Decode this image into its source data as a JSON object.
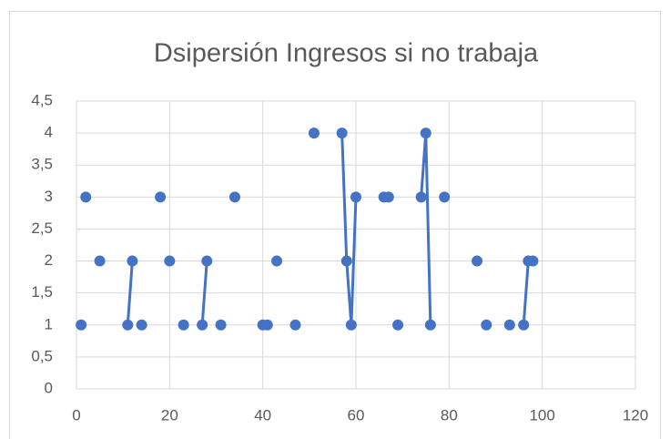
{
  "chart_data": {
    "type": "scatter",
    "title": "Dsipersión Ingresos si no trabaja",
    "color": "#4472c4",
    "grid": true,
    "xlim": [
      0,
      120
    ],
    "xticks": [
      0,
      20,
      40,
      60,
      80,
      100,
      120
    ],
    "ylim": [
      0,
      4.5
    ],
    "yticks": [
      0,
      {
        "value": 0.5,
        "label": "0,5"
      },
      1,
      {
        "value": 1.5,
        "label": "1,5"
      },
      2,
      {
        "value": 2.5,
        "label": "2,5"
      },
      3,
      {
        "value": 3.5,
        "label": "3,5"
      },
      4,
      {
        "value": 4.5,
        "label": "4,5"
      }
    ],
    "x": [
      1,
      null,
      2,
      null,
      5,
      null,
      11,
      12,
      null,
      14,
      null,
      18,
      null,
      20,
      null,
      23,
      null,
      27,
      28,
      null,
      31,
      null,
      34,
      null,
      40,
      null,
      41,
      null,
      43,
      null,
      47,
      null,
      51,
      null,
      57,
      58,
      59,
      60,
      null,
      66,
      null,
      67,
      null,
      69,
      null,
      74,
      75,
      76,
      null,
      79,
      null,
      86,
      null,
      88,
      null,
      93,
      null,
      96,
      97,
      98
    ],
    "values": [
      1,
      null,
      3,
      null,
      2,
      null,
      1,
      2,
      null,
      1,
      null,
      3,
      null,
      2,
      null,
      1,
      null,
      1,
      2,
      null,
      1,
      null,
      3,
      null,
      1,
      null,
      1,
      null,
      2,
      null,
      1,
      null,
      4,
      null,
      4,
      2,
      1,
      3,
      null,
      3,
      null,
      3,
      null,
      1,
      null,
      3,
      4,
      1,
      null,
      3,
      null,
      2,
      null,
      1,
      null,
      1,
      null,
      1,
      2,
      2
    ]
  }
}
